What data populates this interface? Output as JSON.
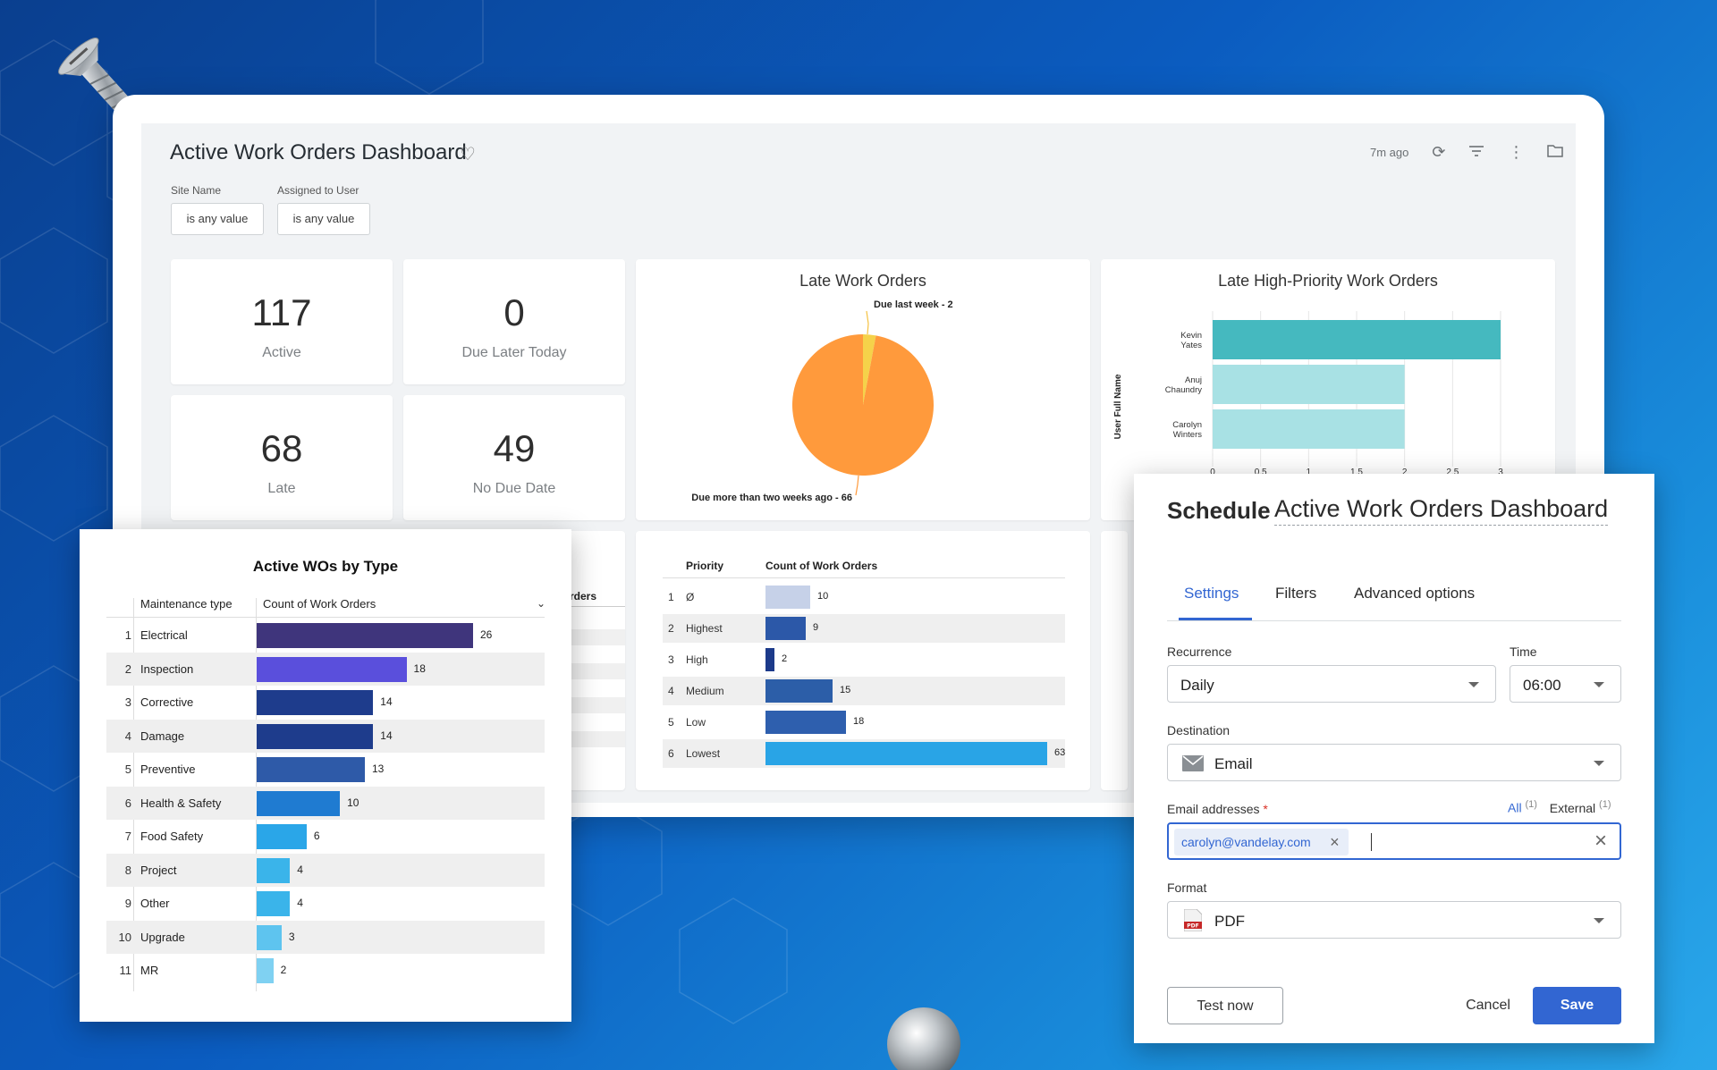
{
  "dashboard": {
    "title": "Active Work Orders Dashboard",
    "refreshed": "7m ago",
    "filters": [
      {
        "label": "Site Name",
        "value": "is any value"
      },
      {
        "label": "Assigned to User",
        "value": "is any value"
      }
    ],
    "kpis": [
      {
        "value": "117",
        "label": "Active"
      },
      {
        "value": "0",
        "label": "Due Later Today"
      },
      {
        "value": "68",
        "label": "Late"
      },
      {
        "value": "49",
        "label": "No Due Date"
      }
    ],
    "late_title": "Late Work Orders",
    "late_hp_title": "Late High-Priority Work Orders",
    "partial_header": "rders"
  },
  "chart_data": [
    {
      "type": "pie",
      "title": "Late Work Orders",
      "labels": [
        "Due last week",
        "Due more than two weeks ago"
      ],
      "values": [
        2,
        66
      ],
      "label_texts": [
        "Due last week - 2",
        "Due more than two weeks ago - 66"
      ],
      "colors": [
        "#f5d24a",
        "#ff9a3c"
      ]
    },
    {
      "type": "bar",
      "orientation": "horizontal",
      "title": "Late High-Priority Work Orders",
      "ylabel": "User Full Name",
      "categories": [
        [
          "Kevin",
          "Yates"
        ],
        [
          "Anuj",
          "Chaundry"
        ],
        [
          "Carolyn",
          "Winters"
        ]
      ],
      "values": [
        3,
        2,
        2
      ],
      "xlim": [
        0,
        3
      ],
      "ticks": [
        "0",
        "0.5",
        "1",
        "1.5",
        "2",
        "2.5",
        "3"
      ],
      "colors": [
        "#45b9bf",
        "#a8e1e4",
        "#a8e1e4"
      ]
    },
    {
      "type": "table",
      "headers": [
        "Priority",
        "Count of Work Orders"
      ],
      "rows": [
        {
          "n": "1",
          "name": "Ø",
          "value": 10,
          "color": "#c6d1e8"
        },
        {
          "n": "2",
          "name": "Highest",
          "value": 9,
          "color": "#2c58a8"
        },
        {
          "n": "3",
          "name": "High",
          "value": 2,
          "color": "#1c3a8a"
        },
        {
          "n": "4",
          "name": "Medium",
          "value": 15,
          "color": "#2c5ea8"
        },
        {
          "n": "5",
          "name": "Low",
          "value": 18,
          "color": "#2e5fae"
        },
        {
          "n": "6",
          "name": "Lowest",
          "value": 63,
          "color": "#29a4e6"
        }
      ]
    },
    {
      "type": "table",
      "title": "Active WOs by Type",
      "headers": [
        "Maintenance type",
        "Count of Work Orders"
      ],
      "rows": [
        {
          "n": "1",
          "name": "Electrical",
          "value": 26,
          "color": "#3f357c"
        },
        {
          "n": "2",
          "name": "Inspection",
          "value": 18,
          "color": "#5a4fdc"
        },
        {
          "n": "3",
          "name": "Corrective",
          "value": 14,
          "color": "#1e3c8c"
        },
        {
          "n": "4",
          "name": "Damage",
          "value": 14,
          "color": "#1e3c8c"
        },
        {
          "n": "5",
          "name": "Preventive",
          "value": 13,
          "color": "#2e5aa8"
        },
        {
          "n": "6",
          "name": "Health & Safety",
          "value": 10,
          "color": "#1f7bd1"
        },
        {
          "n": "7",
          "name": "Food Safety",
          "value": 6,
          "color": "#2aa6e8"
        },
        {
          "n": "8",
          "name": "Project",
          "value": 4,
          "color": "#3ab4ea"
        },
        {
          "n": "9",
          "name": "Other",
          "value": 4,
          "color": "#3ab4ea"
        },
        {
          "n": "10",
          "name": "Upgrade",
          "value": 3,
          "color": "#5ec4ef"
        },
        {
          "n": "11",
          "name": "MR",
          "value": 2,
          "color": "#7fd1f2"
        }
      ]
    }
  ],
  "schedule": {
    "heading": "Schedule",
    "dashboard_name": "Active Work Orders Dashboard",
    "tabs": [
      "Settings",
      "Filters",
      "Advanced options"
    ],
    "active_tab": "Settings",
    "recurrence_label": "Recurrence",
    "recurrence_value": "Daily",
    "time_label": "Time",
    "time_value": "06:00",
    "destination_label": "Destination",
    "destination_value": "Email",
    "email_label": "Email addresses",
    "required_mark": "*",
    "email_all": "All",
    "email_all_count": "(1)",
    "email_external": "External",
    "email_external_count": "(1)",
    "email_chip": "carolyn@vandelay.com",
    "format_label": "Format",
    "format_value": "PDF",
    "pdf_icon_text": "PDF",
    "test_button": "Test now",
    "cancel_button": "Cancel",
    "save_button": "Save",
    "accent": "#3266d2"
  }
}
